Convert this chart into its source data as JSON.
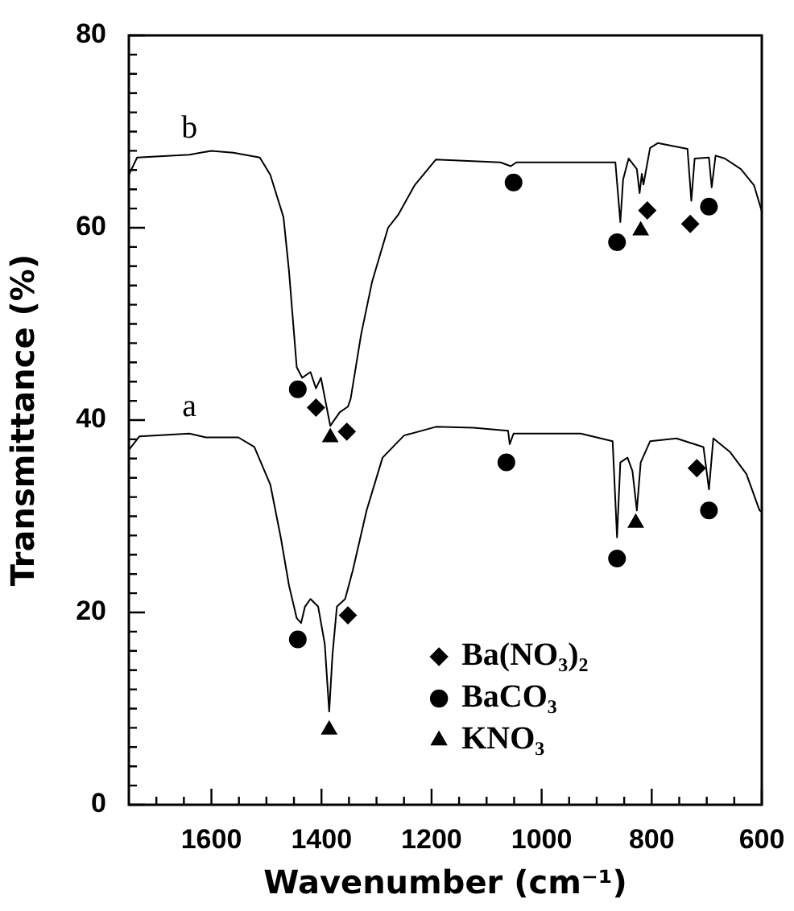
{
  "chart_data": {
    "type": "line",
    "xlabel": "Wavenumber (cm⁻¹)",
    "ylabel": "Transmittance (%)",
    "xlim": [
      1750,
      600
    ],
    "ylim": [
      0,
      80
    ],
    "xticks": [
      {
        "value": 1700,
        "label": null
      },
      {
        "value": 1650,
        "label": null
      },
      1600,
      {
        "value": 1550,
        "label": null
      },
      {
        "value": 1500,
        "label": null
      },
      {
        "value": 1450,
        "label": null
      },
      1400,
      {
        "value": 1350,
        "label": null
      },
      {
        "value": 1300,
        "label": null
      },
      {
        "value": 1250,
        "label": null
      },
      1200,
      {
        "value": 1150,
        "label": null
      },
      {
        "value": 1100,
        "label": null
      },
      {
        "value": 1050,
        "label": null
      },
      1000,
      {
        "value": 950,
        "label": null
      },
      {
        "value": 900,
        "label": null
      },
      {
        "value": 850,
        "label": null
      },
      800,
      {
        "value": 750,
        "label": null
      },
      {
        "value": 700,
        "label": null
      },
      {
        "value": 650,
        "label": null
      },
      600
    ],
    "yticks": [
      0,
      {
        "value": 2,
        "label": null
      },
      {
        "value": 4,
        "label": null
      },
      {
        "value": 6,
        "label": null
      },
      {
        "value": 8,
        "label": null
      },
      {
        "value": 10,
        "label": null
      },
      {
        "value": 12,
        "label": null
      },
      {
        "value": 14,
        "label": null
      },
      {
        "value": 16,
        "label": null
      },
      {
        "value": 18,
        "label": null
      },
      20,
      {
        "value": 22,
        "label": null
      },
      {
        "value": 24,
        "label": null
      },
      {
        "value": 26,
        "label": null
      },
      {
        "value": 28,
        "label": null
      },
      {
        "value": 30,
        "label": null
      },
      {
        "value": 32,
        "label": null
      },
      {
        "value": 34,
        "label": null
      },
      {
        "value": 36,
        "label": null
      },
      {
        "value": 38,
        "label": null
      },
      40,
      {
        "value": 42,
        "label": null
      },
      {
        "value": 44,
        "label": null
      },
      {
        "value": 46,
        "label": null
      },
      {
        "value": 48,
        "label": null
      },
      {
        "value": 50,
        "label": null
      },
      {
        "value": 52,
        "label": null
      },
      {
        "value": 54,
        "label": null
      },
      {
        "value": 56,
        "label": null
      },
      {
        "value": 58,
        "label": null
      },
      60,
      {
        "value": 62,
        "label": null
      },
      {
        "value": 64,
        "label": null
      },
      {
        "value": 66,
        "label": null
      },
      {
        "value": 68,
        "label": null
      },
      {
        "value": 70,
        "label": null
      },
      {
        "value": 72,
        "label": null
      },
      {
        "value": 74,
        "label": null
      },
      {
        "value": 76,
        "label": null
      },
      {
        "value": 78,
        "label": null
      },
      80
    ],
    "grid": false,
    "legend": "bottom",
    "marker": "none",
    "series": [
      {
        "name": "b",
        "color": "#000000",
        "x": [
          1750,
          1735,
          1640,
          1600,
          1560,
          1512,
          1493,
          1469,
          1459,
          1445,
          1435,
          1420,
          1410,
          1401,
          1384,
          1367,
          1352,
          1347,
          1328,
          1308,
          1279,
          1260,
          1231,
          1192,
          1075,
          1056,
          1046,
          866,
          857,
          852,
          842,
          827,
          822,
          818,
          815,
          803,
          789,
          735,
          728,
          722,
          696,
          691,
          684,
          667,
          638,
          614,
          600
        ],
        "values": [
          65.5,
          67.3,
          67.6,
          68,
          67.8,
          67.3,
          65.5,
          61.1,
          55.5,
          45.5,
          44.4,
          45,
          43.3,
          44.4,
          39.4,
          40.8,
          41.4,
          42.2,
          48.9,
          54.4,
          60,
          61.4,
          64.4,
          67.1,
          66.8,
          66.4,
          66.8,
          66.8,
          60.6,
          65,
          67.2,
          66.1,
          63.6,
          65.6,
          64.5,
          68.3,
          68.8,
          68.2,
          62.8,
          67.2,
          67.3,
          64.2,
          67.5,
          67.2,
          66.1,
          64.4,
          61.7
        ]
      },
      {
        "name": "a",
        "color": "#000000",
        "x": [
          1750,
          1731,
          1640,
          1610,
          1551,
          1522,
          1493,
          1474,
          1459,
          1445,
          1437,
          1430,
          1420,
          1406,
          1394,
          1386,
          1380,
          1372,
          1357,
          1343,
          1318,
          1289,
          1250,
          1192,
          1124,
          1061,
          1058,
          1051,
          929,
          871,
          863,
          857,
          844,
          835,
          827,
          820,
          803,
          755,
          706,
          696,
          688,
          658,
          628,
          604,
          600
        ],
        "values": [
          36.9,
          38.3,
          38.6,
          38.2,
          38.2,
          37.2,
          33.3,
          27.8,
          22.8,
          19.4,
          18.9,
          20.6,
          21.4,
          20.6,
          16.7,
          9.7,
          15.6,
          20.6,
          21.4,
          24.4,
          30.6,
          36.1,
          38.4,
          39.3,
          39.2,
          38.9,
          37.5,
          38.6,
          38.6,
          37.8,
          27.8,
          35.6,
          36.1,
          34.7,
          30.6,
          35.6,
          37.8,
          38.1,
          37.2,
          32.8,
          38.1,
          36.7,
          34.4,
          30.6,
          30.5
        ]
      },
      {
        "name": "Ba(NO₃)₂",
        "type": "scatter",
        "marker": "diamond",
        "color": "#000000",
        "x": [
          1410,
          1354,
          808,
          730,
          1352,
          718
        ],
        "values": [
          41.3,
          38.8,
          61.8,
          60.4,
          19.7,
          35
        ]
      },
      {
        "name": "BaCO₃",
        "type": "scatter",
        "marker": "circle",
        "color": "#000000",
        "x": [
          1443,
          1051,
          863,
          696,
          1443,
          1064,
          863,
          696
        ],
        "values": [
          43.2,
          64.7,
          58.5,
          62.2,
          17.2,
          35.6,
          25.6,
          30.6
        ]
      },
      {
        "name": "KNO₃",
        "type": "scatter",
        "marker": "triangle",
        "color": "#000000",
        "x": [
          1384,
          820,
          1386,
          829
        ],
        "values": [
          38.2,
          59.7,
          7.8,
          29.3
        ]
      }
    ]
  }
}
